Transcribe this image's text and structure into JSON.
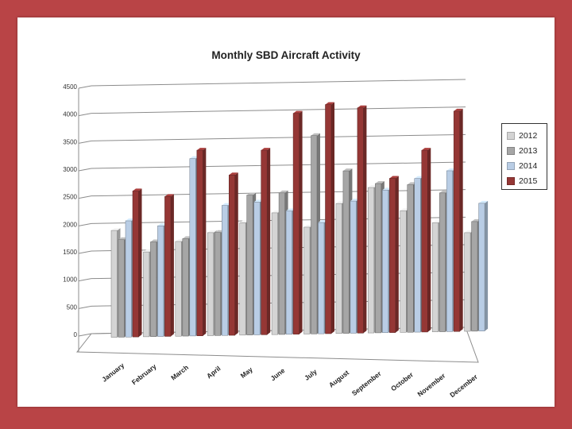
{
  "chart_data": {
    "type": "bar",
    "title": "Monthly SBD Aircraft Activity",
    "xlabel": "",
    "ylabel": "",
    "ylim": [
      0,
      4500
    ],
    "yticks": [
      0,
      500,
      1000,
      1500,
      2000,
      2500,
      3000,
      3500,
      4000,
      4500
    ],
    "grid": true,
    "legend_position": "right",
    "categories": [
      "January",
      "February",
      "March",
      "April",
      "May",
      "June",
      "July",
      "August",
      "September",
      "October",
      "November",
      "December"
    ],
    "series": [
      {
        "name": "2012",
        "color": "#d4d4d4",
        "values": [
          1940,
          1540,
          1720,
          1870,
          2040,
          2210,
          1940,
          2360,
          2640,
          2210,
          1980,
          1790
        ]
      },
      {
        "name": "2013",
        "color": "#a6a6a6",
        "values": [
          1770,
          1720,
          1770,
          1870,
          2540,
          2570,
          3600,
          2950,
          2710,
          2680,
          2520,
          1990
        ]
      },
      {
        "name": "2014",
        "color": "#b9cde5",
        "values": [
          2110,
          2010,
          3220,
          2360,
          2410,
          2240,
          2020,
          2400,
          2590,
          2790,
          2920,
          2320
        ]
      },
      {
        "name": "2015",
        "color": "#953735",
        "values": [
          2650,
          2540,
          3370,
          2910,
          3350,
          4010,
          4160,
          4090,
          2800,
          3300,
          4000,
          null
        ]
      }
    ]
  }
}
